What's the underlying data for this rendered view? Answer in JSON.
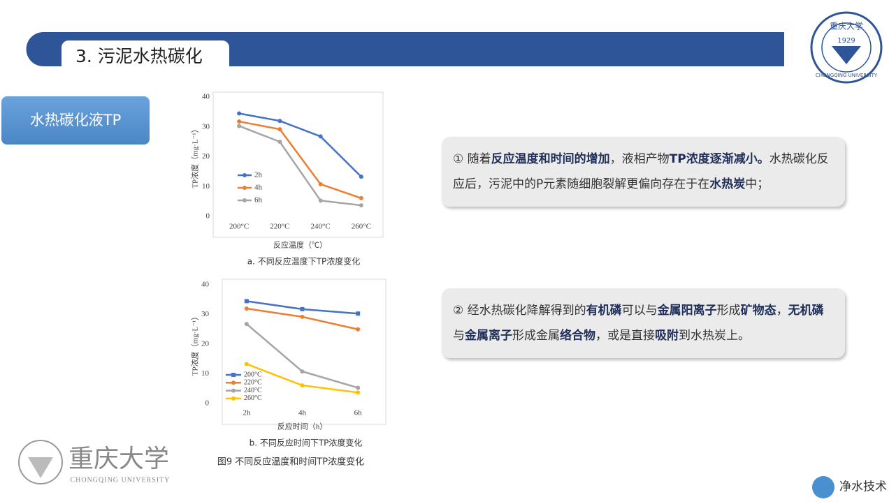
{
  "header": {
    "title": "3. 污泥水热碳化"
  },
  "side_label": "水热碳化液TP",
  "chart_data": [
    {
      "type": "line",
      "categories": [
        "200°C",
        "220°C",
        "240°C",
        "260°C"
      ],
      "series": [
        {
          "name": "2h",
          "color": "#4472c4",
          "marker": "circle",
          "values": [
            34.5,
            32,
            26.8,
            13.3
          ]
        },
        {
          "name": "4h",
          "color": "#ed7d31",
          "marker": "circle",
          "values": [
            31.8,
            29.2,
            10.8,
            6.1
          ]
        },
        {
          "name": "6h",
          "color": "#a5a5a5",
          "marker": "circle",
          "values": [
            30.3,
            25,
            5.3,
            3.7
          ]
        }
      ],
      "ylim": [
        0,
        40
      ],
      "yticks": [
        0,
        10,
        20,
        30,
        40
      ],
      "grid": false,
      "ylabel": "TP浓度（mg·L⁻¹）",
      "xlabel": "反应温度（℃）",
      "caption": "a. 不同反应温度下TP浓度变化",
      "legend": "left"
    },
    {
      "type": "line",
      "categories": [
        "2h",
        "4h",
        "6h"
      ],
      "series": [
        {
          "name": "200°C",
          "color": "#4472c4",
          "marker": "square",
          "values": [
            34.5,
            31.8,
            30.3
          ]
        },
        {
          "name": "220°C",
          "color": "#ed7d31",
          "marker": "circle",
          "values": [
            32,
            29.2,
            25
          ]
        },
        {
          "name": "240°C",
          "color": "#a5a5a5",
          "marker": "circle",
          "values": [
            26.8,
            10.8,
            5.3
          ]
        },
        {
          "name": "260°C",
          "color": "#ffc000",
          "marker": "circle",
          "values": [
            13.3,
            6.1,
            3.7
          ]
        }
      ],
      "ylim": [
        0,
        40
      ],
      "yticks": [
        0,
        10,
        20,
        30,
        40
      ],
      "grid": false,
      "ylabel": "TP浓度（mg·L⁻¹）",
      "xlabel": "反应时间（h）",
      "caption": "b. 不同反应时间下TP浓度变化",
      "legend": "lower left"
    }
  ],
  "figure_caption": "图9  不同反应温度和时间TP浓度变化",
  "text_boxes": [
    {
      "segments": [
        {
          "text": "① 随着",
          "bold": false
        },
        {
          "text": "反应温度和时间的增加",
          "bold": true
        },
        {
          "text": "，液相产物",
          "bold": false
        },
        {
          "text": "TP浓度逐渐减小。",
          "bold": true
        },
        {
          "text": "水热碳化反应后，污泥中的P元素随细胞裂解更偏向存在于在",
          "bold": false
        },
        {
          "text": "水热炭",
          "bold": true
        },
        {
          "text": "中；",
          "bold": false
        }
      ]
    },
    {
      "segments": [
        {
          "text": "② 经水热碳化降解得到的",
          "bold": false
        },
        {
          "text": "有机磷",
          "bold": true
        },
        {
          "text": "可以与",
          "bold": false
        },
        {
          "text": "金属阳离子",
          "bold": true
        },
        {
          "text": "形成",
          "bold": false
        },
        {
          "text": "矿物态",
          "bold": true
        },
        {
          "text": "，",
          "bold": false
        },
        {
          "text": "无机磷",
          "bold": true
        },
        {
          "text": "与",
          "bold": false
        },
        {
          "text": "金属离子",
          "bold": true
        },
        {
          "text": "形成金属",
          "bold": false
        },
        {
          "text": "络合物",
          "bold": true
        },
        {
          "text": "，或是直接",
          "bold": false
        },
        {
          "text": "吸附",
          "bold": true
        },
        {
          "text": "到水热炭上。",
          "bold": false
        }
      ]
    }
  ],
  "top_logo": {
    "name": "重庆大学",
    "year": "1929",
    "english": "CHONGQING UNIVERSITY"
  },
  "bottom_logo": {
    "name": "重庆大学",
    "english": "CHONGQING UNIVERSITY"
  },
  "footer_brand": "净水技术"
}
